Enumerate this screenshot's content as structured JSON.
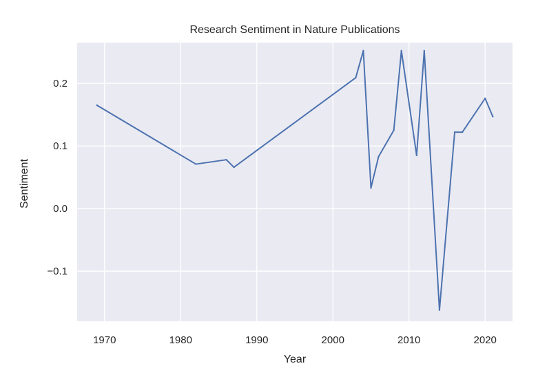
{
  "chart_data": {
    "type": "line",
    "title": "Research Sentiment in Nature Publications",
    "xlabel": "Year",
    "ylabel": "Sentiment",
    "xlim": [
      1966.4,
      2023.6
    ],
    "ylim": [
      -0.18,
      0.265
    ],
    "xticks": [
      1970,
      1980,
      1990,
      2000,
      2010,
      2020
    ],
    "xtick_labels": [
      "1970",
      "1980",
      "1990",
      "2000",
      "2010",
      "2020"
    ],
    "yticks": [
      -0.1,
      0.0,
      0.1,
      0.2
    ],
    "ytick_labels": [
      "−0.1",
      "0.0",
      "0.1",
      "0.2"
    ],
    "grid": true,
    "style": {
      "background": "#EAEAF2",
      "grid_color": "#FFFFFF",
      "line_color": "#4C72B0"
    },
    "series": [
      {
        "x": [
          1969,
          1982,
          1986,
          1987,
          2003,
          2004,
          2005,
          2006,
          2008,
          2009,
          2011,
          2012,
          2014,
          2016,
          2017,
          2020,
          2021
        ],
        "values": [
          0.165,
          0.071,
          0.078,
          0.066,
          0.209,
          0.252,
          0.033,
          0.083,
          0.125,
          0.252,
          0.085,
          0.252,
          -0.162,
          0.122,
          0.122,
          0.176,
          0.147
        ]
      }
    ]
  }
}
